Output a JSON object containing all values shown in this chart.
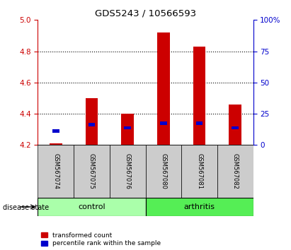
{
  "title": "GDS5243 / 10566593",
  "samples": [
    "GSM567074",
    "GSM567075",
    "GSM567076",
    "GSM567080",
    "GSM567081",
    "GSM567082"
  ],
  "groups": [
    "control",
    "control",
    "control",
    "arthritis",
    "arthritis",
    "arthritis"
  ],
  "red_values": [
    4.21,
    4.5,
    4.4,
    4.92,
    4.83,
    4.46
  ],
  "blue_values": [
    4.29,
    4.33,
    4.31,
    4.34,
    4.34,
    4.31
  ],
  "baseline": 4.2,
  "ylim_left": [
    4.2,
    5.0
  ],
  "ylim_right": [
    0,
    100
  ],
  "yticks_left": [
    4.2,
    4.4,
    4.6,
    4.8,
    5.0
  ],
  "yticks_right": [
    0,
    25,
    50,
    75,
    100
  ],
  "ytick_labels_right": [
    "0",
    "25",
    "50",
    "75",
    "100%"
  ],
  "left_color": "#cc0000",
  "right_color": "#0000cc",
  "bar_color": "#cc0000",
  "blue_color": "#0000cc",
  "control_color": "#aaffaa",
  "arthritis_color": "#55ee55",
  "legend_red": "transformed count",
  "legend_blue": "percentile rank within the sample",
  "bar_width": 0.35,
  "bar_bg_color": "#cccccc",
  "grid_ticks": [
    4.4,
    4.6,
    4.8
  ],
  "dot_ticks": [
    4.4,
    4.6,
    4.8
  ]
}
